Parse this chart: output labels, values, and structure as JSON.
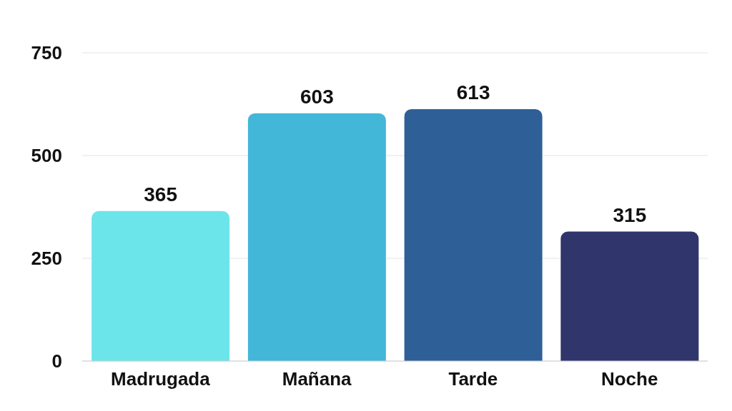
{
  "chart_data": {
    "type": "bar",
    "categories": [
      "Madrugada",
      "Mañana",
      "Tarde",
      "Noche"
    ],
    "values": [
      365,
      603,
      613,
      315
    ],
    "colors": [
      "#6ce5ea",
      "#43b7d8",
      "#2f5f97",
      "#30356b"
    ],
    "ylim": [
      0,
      750
    ],
    "yticks": [
      0,
      250,
      500,
      750
    ],
    "grid": "y",
    "data_labels": true
  }
}
